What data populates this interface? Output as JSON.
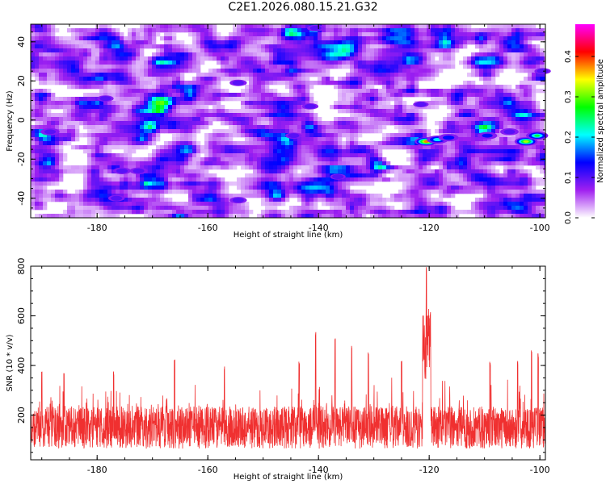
{
  "title": "C2E1.2026.080.15.21.G32",
  "chart_data": [
    {
      "type": "heatmap",
      "name": "spectrogram",
      "xlabel": "Height of straight line (km)",
      "ylabel": "Frequency (Hz)",
      "xlim": [
        -192,
        -99
      ],
      "ylim": [
        -50,
        49
      ],
      "xticks": [
        -180,
        -160,
        -140,
        -120,
        -100
      ],
      "yticks": [
        -40,
        -20,
        0,
        20,
        40
      ],
      "colorbar": {
        "label": "Normalized spectral amplitude",
        "range": [
          0,
          0.48
        ],
        "ticks": [
          0.0,
          0.1,
          0.2,
          0.3,
          0.4
        ],
        "colors": [
          "#ffffff",
          "#a020f0",
          "#0000ff",
          "#00ffff",
          "#00ff00",
          "#ffff00",
          "#ff0000",
          "#ff00ff"
        ]
      },
      "background_level": 0.06,
      "hotspots": [
        {
          "x": -120.5,
          "y": -11,
          "amp": 0.4
        },
        {
          "x": -118.5,
          "y": -10,
          "amp": 0.22
        },
        {
          "x": -116.5,
          "y": -9,
          "amp": 0.16
        },
        {
          "x": -102.5,
          "y": -11,
          "amp": 0.34
        },
        {
          "x": -100.5,
          "y": -8,
          "amp": 0.26
        },
        {
          "x": -109.5,
          "y": -8,
          "amp": 0.15
        },
        {
          "x": -105.5,
          "y": -6,
          "amp": 0.12
        },
        {
          "x": -188.5,
          "y": -6,
          "amp": 0.13
        },
        {
          "x": -175.5,
          "y": -26,
          "amp": 0.11
        },
        {
          "x": -172.5,
          "y": -26,
          "amp": 0.11
        },
        {
          "x": -154.5,
          "y": 19,
          "amp": 0.1
        },
        {
          "x": -154.5,
          "y": -41,
          "amp": 0.1
        },
        {
          "x": -178.5,
          "y": 11,
          "amp": 0.09
        },
        {
          "x": -176.5,
          "y": -40,
          "amp": 0.09
        },
        {
          "x": -141.5,
          "y": 7,
          "amp": 0.09
        },
        {
          "x": -144.5,
          "y": -8,
          "amp": 0.09
        },
        {
          "x": -136.5,
          "y": -29,
          "amp": 0.08
        },
        {
          "x": -121.5,
          "y": 8,
          "amp": 0.08
        },
        {
          "x": -140.5,
          "y": 47,
          "amp": 0.1
        },
        {
          "x": -99.5,
          "y": 25,
          "amp": 0.09
        }
      ]
    },
    {
      "type": "line",
      "name": "snr",
      "xlabel": "Height of straight line (km)",
      "ylabel": "SNR (10 * v/v)",
      "xlim": [
        -192,
        -99
      ],
      "ylim": [
        20,
        800
      ],
      "xticks": [
        -180,
        -160,
        -140,
        -120,
        -100
      ],
      "yticks": [
        200,
        400,
        600,
        800
      ],
      "color": "#f03030",
      "baseline": 150,
      "spikes": [
        {
          "x": -190,
          "y": 380
        },
        {
          "x": -186,
          "y": 380
        },
        {
          "x": -177,
          "y": 380
        },
        {
          "x": -166,
          "y": 430
        },
        {
          "x": -157,
          "y": 400
        },
        {
          "x": -143.5,
          "y": 420
        },
        {
          "x": -140.5,
          "y": 540
        },
        {
          "x": -137,
          "y": 520
        },
        {
          "x": -134,
          "y": 480
        },
        {
          "x": -131,
          "y": 460
        },
        {
          "x": -125,
          "y": 430
        },
        {
          "x": -121,
          "y": 490
        },
        {
          "x": -120.5,
          "y": 800
        },
        {
          "x": -119.8,
          "y": 620
        },
        {
          "x": -109,
          "y": 420
        },
        {
          "x": -104,
          "y": 420
        },
        {
          "x": -101.5,
          "y": 470
        },
        {
          "x": -100.3,
          "y": 450
        }
      ]
    }
  ]
}
